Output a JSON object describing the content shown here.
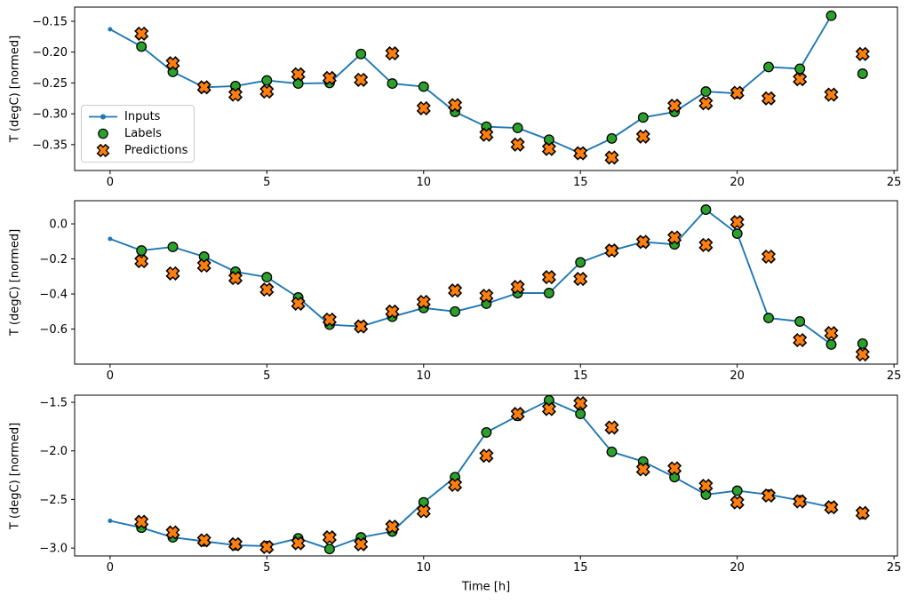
{
  "figure": {
    "xlabel": "Time [h]",
    "background": "#ffffff",
    "axes_color": "#000000"
  },
  "legend": {
    "entries": [
      {
        "label": "Inputs",
        "type": "line-dot",
        "color": "#1f77b4"
      },
      {
        "label": "Labels",
        "type": "circle",
        "color": "#2ca02c"
      },
      {
        "label": "Predictions",
        "type": "x",
        "color": "#ff7f0e"
      }
    ]
  },
  "chart_data": [
    {
      "type": "line",
      "title": "",
      "xlabel": "",
      "ylabel": "T (degC) [normed]",
      "grid": false,
      "xticks": [
        0,
        5,
        10,
        15,
        20,
        25
      ],
      "xtick_labels": [
        "0",
        "5",
        "10",
        "15",
        "20",
        "25"
      ],
      "yticks": [
        -0.15,
        -0.2,
        -0.25,
        -0.3,
        -0.35
      ],
      "ytick_labels": [
        "−0.15",
        "−0.20",
        "−0.25",
        "−0.30",
        "−0.35"
      ],
      "xlim": [
        -1.13,
        25.11
      ],
      "ylim": [
        -0.392,
        -0.127
      ],
      "series": [
        {
          "name": "Inputs",
          "style": "line-dot",
          "color": "#1f77b4",
          "x": [
            0,
            1,
            2,
            3,
            4,
            5,
            6,
            7,
            8,
            9,
            10,
            11,
            12,
            13,
            14,
            15,
            16,
            17,
            18,
            19,
            20,
            21,
            22,
            23
          ],
          "y": [
            -0.163,
            -0.191,
            -0.232,
            -0.257,
            -0.255,
            -0.246,
            -0.251,
            -0.25,
            -0.203,
            -0.251,
            -0.256,
            -0.297,
            -0.321,
            -0.323,
            -0.342,
            -0.364,
            -0.34,
            -0.306,
            -0.297,
            -0.264,
            -0.267,
            -0.224,
            -0.227,
            -0.141
          ]
        },
        {
          "name": "Labels",
          "style": "scatter-circle",
          "color": "#2ca02c",
          "edge_color": "#000000",
          "x": [
            1,
            2,
            3,
            4,
            5,
            6,
            7,
            8,
            9,
            10,
            11,
            12,
            13,
            14,
            15,
            16,
            17,
            18,
            19,
            20,
            21,
            22,
            23,
            24
          ],
          "y": [
            -0.191,
            -0.232,
            -0.257,
            -0.255,
            -0.246,
            -0.251,
            -0.25,
            -0.203,
            -0.251,
            -0.256,
            -0.297,
            -0.321,
            -0.323,
            -0.342,
            -0.364,
            -0.34,
            -0.306,
            -0.297,
            -0.264,
            -0.267,
            -0.224,
            -0.227,
            -0.141,
            -0.235
          ]
        },
        {
          "name": "Predictions",
          "style": "scatter-x",
          "color": "#ff7f0e",
          "edge_color": "#000000",
          "x": [
            1,
            2,
            3,
            4,
            5,
            6,
            7,
            8,
            9,
            10,
            11,
            12,
            13,
            14,
            15,
            16,
            17,
            18,
            19,
            20,
            21,
            22,
            23,
            24
          ],
          "y": [
            -0.17,
            -0.218,
            -0.257,
            -0.269,
            -0.264,
            -0.236,
            -0.242,
            -0.245,
            -0.202,
            -0.291,
            -0.286,
            -0.334,
            -0.35,
            -0.357,
            -0.364,
            -0.371,
            -0.337,
            -0.287,
            -0.283,
            -0.266,
            -0.275,
            -0.244,
            -0.269,
            -0.203
          ]
        }
      ]
    },
    {
      "type": "line",
      "title": "",
      "xlabel": "",
      "ylabel": "T (degC) [normed]",
      "grid": false,
      "xticks": [
        0,
        5,
        10,
        15,
        20,
        25
      ],
      "xtick_labels": [
        "0",
        "5",
        "10",
        "15",
        "20",
        "25"
      ],
      "yticks": [
        0.0,
        -0.2,
        -0.4,
        -0.6
      ],
      "ytick_labels": [
        "0.0",
        "−0.2",
        "−0.4",
        "−0.6"
      ],
      "xlim": [
        -1.13,
        25.11
      ],
      "ylim": [
        -0.8,
        0.132
      ],
      "series": [
        {
          "name": "Inputs",
          "style": "line-dot",
          "color": "#1f77b4",
          "x": [
            0,
            1,
            2,
            3,
            4,
            5,
            6,
            7,
            8,
            9,
            10,
            11,
            12,
            13,
            14,
            15,
            16,
            17,
            18,
            19,
            20,
            21,
            22,
            23
          ],
          "y": [
            -0.086,
            -0.152,
            -0.132,
            -0.187,
            -0.273,
            -0.304,
            -0.42,
            -0.575,
            -0.585,
            -0.53,
            -0.48,
            -0.5,
            -0.455,
            -0.395,
            -0.395,
            -0.22,
            -0.152,
            -0.103,
            -0.117,
            0.081,
            -0.056,
            -0.537,
            -0.557,
            -0.688
          ]
        },
        {
          "name": "Labels",
          "style": "scatter-circle",
          "color": "#2ca02c",
          "edge_color": "#000000",
          "x": [
            1,
            2,
            3,
            4,
            5,
            6,
            7,
            8,
            9,
            10,
            11,
            12,
            13,
            14,
            15,
            16,
            17,
            18,
            19,
            20,
            21,
            22,
            23,
            24
          ],
          "y": [
            -0.152,
            -0.132,
            -0.187,
            -0.273,
            -0.304,
            -0.42,
            -0.575,
            -0.585,
            -0.53,
            -0.48,
            -0.5,
            -0.455,
            -0.395,
            -0.395,
            -0.22,
            -0.152,
            -0.103,
            -0.117,
            0.081,
            -0.056,
            -0.537,
            -0.557,
            -0.688,
            -0.683
          ]
        },
        {
          "name": "Predictions",
          "style": "scatter-x",
          "color": "#ff7f0e",
          "edge_color": "#000000",
          "x": [
            1,
            2,
            3,
            4,
            5,
            6,
            7,
            8,
            9,
            10,
            11,
            12,
            13,
            14,
            15,
            16,
            17,
            18,
            19,
            20,
            21,
            22,
            23,
            24
          ],
          "y": [
            -0.213,
            -0.283,
            -0.238,
            -0.309,
            -0.375,
            -0.455,
            -0.546,
            -0.585,
            -0.5,
            -0.445,
            -0.38,
            -0.41,
            -0.36,
            -0.304,
            -0.314,
            -0.152,
            -0.103,
            -0.078,
            -0.121,
            0.01,
            -0.187,
            -0.663,
            -0.623,
            -0.745
          ]
        }
      ]
    },
    {
      "type": "line",
      "title": "",
      "xlabel": "Time [h]",
      "ylabel": "T (degC) [normed]",
      "grid": false,
      "xticks": [
        0,
        5,
        10,
        15,
        20,
        25
      ],
      "xtick_labels": [
        "0",
        "5",
        "10",
        "15",
        "20",
        "25"
      ],
      "yticks": [
        -1.5,
        -2.0,
        -2.5,
        -3.0
      ],
      "ytick_labels": [
        "−1.5",
        "−2.0",
        "−2.5",
        "−3.0"
      ],
      "xlim": [
        -1.13,
        25.11
      ],
      "ylim": [
        -3.081,
        -1.427
      ],
      "series": [
        {
          "name": "Inputs",
          "style": "line-dot",
          "color": "#1f77b4",
          "x": [
            0,
            1,
            2,
            3,
            4,
            5,
            6,
            7,
            8,
            9,
            10,
            11,
            12,
            13,
            14,
            15,
            16,
            17,
            18,
            19,
            20,
            21,
            22,
            23
          ],
          "y": [
            -2.72,
            -2.79,
            -2.89,
            -2.93,
            -2.97,
            -2.98,
            -2.9,
            -3.01,
            -2.89,
            -2.83,
            -2.53,
            -2.27,
            -1.81,
            -1.64,
            -1.48,
            -1.62,
            -2.01,
            -2.11,
            -2.27,
            -2.45,
            -2.41,
            -2.45,
            -2.51,
            -2.58
          ]
        },
        {
          "name": "Labels",
          "style": "scatter-circle",
          "color": "#2ca02c",
          "edge_color": "#000000",
          "x": [
            1,
            2,
            3,
            4,
            5,
            6,
            7,
            8,
            9,
            10,
            11,
            12,
            13,
            14,
            15,
            16,
            17,
            18,
            19,
            20,
            21,
            22,
            23,
            24
          ],
          "y": [
            -2.79,
            -2.89,
            -2.93,
            -2.97,
            -2.98,
            -2.9,
            -3.01,
            -2.89,
            -2.83,
            -2.53,
            -2.27,
            -1.81,
            -1.64,
            -1.48,
            -1.62,
            -2.01,
            -2.11,
            -2.27,
            -2.45,
            -2.41,
            -2.45,
            -2.51,
            -2.58,
            -2.65
          ]
        },
        {
          "name": "Predictions",
          "style": "scatter-x",
          "color": "#ff7f0e",
          "edge_color": "#000000",
          "x": [
            1,
            2,
            3,
            4,
            5,
            6,
            7,
            8,
            9,
            10,
            11,
            12,
            13,
            14,
            15,
            16,
            17,
            18,
            19,
            20,
            21,
            22,
            23,
            24
          ],
          "y": [
            -2.73,
            -2.84,
            -2.92,
            -2.96,
            -2.99,
            -2.95,
            -2.89,
            -2.96,
            -2.78,
            -2.62,
            -2.35,
            -2.05,
            -1.62,
            -1.57,
            -1.51,
            -1.76,
            -2.19,
            -2.18,
            -2.36,
            -2.53,
            -2.46,
            -2.52,
            -2.58,
            -2.64
          ]
        }
      ]
    }
  ]
}
